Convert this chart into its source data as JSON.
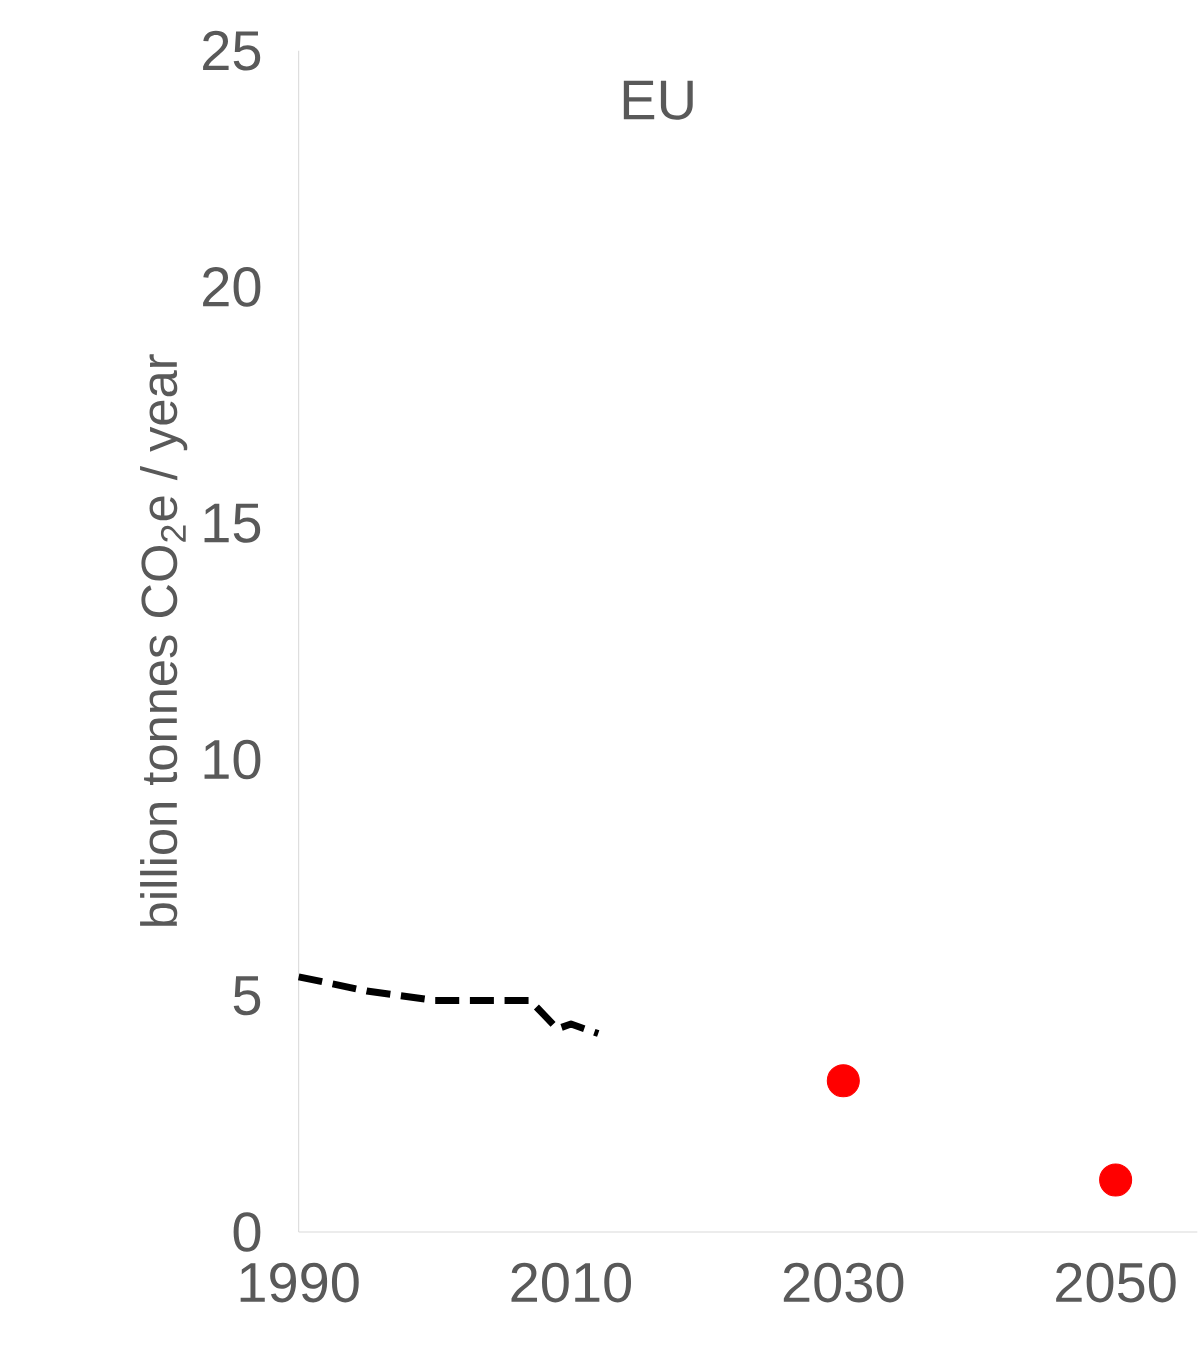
{
  "chart_data": {
    "type": "line",
    "title": "EU",
    "ylabel": "billion tonnes CO$_{2}$e / year",
    "xlim": [
      1990,
      2056
    ],
    "xticks": [
      1990,
      2010,
      2030,
      2050
    ],
    "ylim": [
      0,
      25
    ],
    "yticks": [
      0,
      5,
      10,
      15,
      20,
      25
    ],
    "grid": false,
    "series": [
      {
        "color": "#000000",
        "line_style": "dashed",
        "marker": "none",
        "x": [
          1990,
          1995,
          2000,
          2007,
          2008,
          2009,
          2010,
          2012
        ],
        "values": [
          5.4,
          5.1,
          4.9,
          4.9,
          4.6,
          4.3,
          4.4,
          4.2
        ]
      },
      {
        "type": "scatter",
        "color": "#ff0000",
        "marker": "circle",
        "x": [
          2030,
          2050
        ],
        "values": [
          3.2,
          1.1
        ]
      }
    ]
  }
}
